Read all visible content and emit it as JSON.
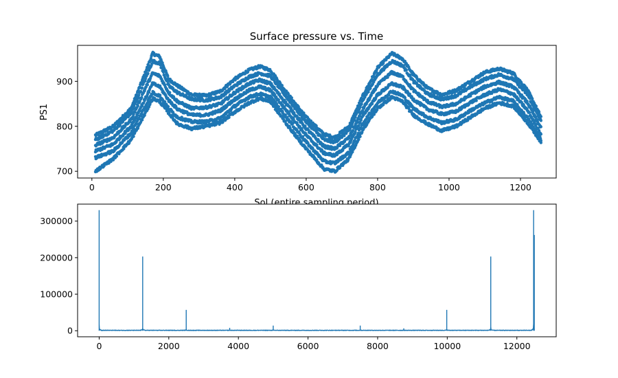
{
  "chart_data": [
    {
      "type": "scatter",
      "title": "Surface pressure vs. Time",
      "xlabel": "Sol (entire sampling period)",
      "ylabel": "PS1",
      "xlim": [
        -40,
        1300
      ],
      "ylim": [
        685,
        980
      ],
      "xticks": [
        0,
        200,
        400,
        600,
        800,
        1000,
        1200
      ],
      "yticks": [
        700,
        800,
        900
      ],
      "color": "#1f77b4",
      "marker_size": 2.2,
      "x_range": [
        10,
        1258
      ],
      "series": [
        {
          "offset": 0,
          "values": [
            [
              10,
              780
            ],
            [
              60,
              800
            ],
            [
              110,
              840
            ],
            [
              150,
              920
            ],
            [
              170,
              962
            ],
            [
              190,
              955
            ],
            [
              215,
              905
            ],
            [
              240,
              890
            ],
            [
              280,
              870
            ],
            [
              320,
              868
            ],
            [
              360,
              878
            ],
            [
              400,
              905
            ],
            [
              440,
              925
            ],
            [
              470,
              933
            ],
            [
              500,
              925
            ],
            [
              550,
              870
            ],
            [
              600,
              820
            ],
            [
              650,
              782
            ],
            [
              680,
              775
            ],
            [
              720,
              800
            ],
            [
              760,
              870
            ],
            [
              800,
              930
            ],
            [
              840,
              962
            ],
            [
              870,
              950
            ],
            [
              900,
              915
            ],
            [
              940,
              885
            ],
            [
              980,
              870
            ],
            [
              1020,
              880
            ],
            [
              1060,
              900
            ],
            [
              1100,
              920
            ],
            [
              1140,
              928
            ],
            [
              1180,
              918
            ],
            [
              1220,
              880
            ],
            [
              1258,
              820
            ]
          ]
        },
        {
          "offset": -12,
          "values": [
            [
              10,
              770
            ],
            [
              60,
              790
            ],
            [
              110,
              830
            ],
            [
              150,
              905
            ],
            [
              170,
              945
            ],
            [
              190,
              940
            ],
            [
              215,
              890
            ],
            [
              240,
              875
            ],
            [
              280,
              860
            ],
            [
              320,
              858
            ],
            [
              360,
              865
            ],
            [
              400,
              890
            ],
            [
              440,
              910
            ],
            [
              470,
              918
            ],
            [
              500,
              912
            ],
            [
              550,
              860
            ],
            [
              600,
              810
            ],
            [
              650,
              770
            ],
            [
              680,
              765
            ],
            [
              720,
              790
            ],
            [
              760,
              860
            ],
            [
              800,
              915
            ],
            [
              840,
              945
            ],
            [
              870,
              935
            ],
            [
              900,
              900
            ],
            [
              940,
              872
            ],
            [
              980,
              860
            ],
            [
              1020,
              868
            ],
            [
              1060,
              888
            ],
            [
              1100,
              905
            ],
            [
              1140,
              915
            ],
            [
              1180,
              905
            ],
            [
              1220,
              870
            ],
            [
              1258,
              810
            ]
          ]
        },
        {
          "offset": -28,
          "values": [
            [
              10,
              758
            ],
            [
              60,
              775
            ],
            [
              110,
              815
            ],
            [
              150,
              885
            ],
            [
              170,
              918
            ],
            [
              190,
              912
            ],
            [
              215,
              875
            ],
            [
              240,
              855
            ],
            [
              280,
              840
            ],
            [
              320,
              842
            ],
            [
              360,
              850
            ],
            [
              400,
              875
            ],
            [
              440,
              895
            ],
            [
              470,
              903
            ],
            [
              500,
              895
            ],
            [
              550,
              845
            ],
            [
              600,
              795
            ],
            [
              650,
              755
            ],
            [
              680,
              750
            ],
            [
              720,
              775
            ],
            [
              760,
              840
            ],
            [
              800,
              892
            ],
            [
              840,
              920
            ],
            [
              870,
              910
            ],
            [
              900,
              880
            ],
            [
              940,
              855
            ],
            [
              980,
              843
            ],
            [
              1020,
              850
            ],
            [
              1060,
              870
            ],
            [
              1100,
              888
            ],
            [
              1140,
              898
            ],
            [
              1180,
              888
            ],
            [
              1220,
              852
            ],
            [
              1258,
              795
            ]
          ]
        },
        {
          "offset": -45,
          "values": [
            [
              10,
              745
            ],
            [
              60,
              760
            ],
            [
              110,
              800
            ],
            [
              150,
              862
            ],
            [
              170,
              895
            ],
            [
              190,
              888
            ],
            [
              215,
              858
            ],
            [
              240,
              838
            ],
            [
              280,
              825
            ],
            [
              320,
              825
            ],
            [
              360,
              835
            ],
            [
              400,
              860
            ],
            [
              440,
              880
            ],
            [
              470,
              888
            ],
            [
              500,
              880
            ],
            [
              550,
              830
            ],
            [
              600,
              780
            ],
            [
              650,
              740
            ],
            [
              680,
              735
            ],
            [
              720,
              760
            ],
            [
              760,
              825
            ],
            [
              800,
              870
            ],
            [
              840,
              895
            ],
            [
              870,
              887
            ],
            [
              900,
              860
            ],
            [
              940,
              838
            ],
            [
              980,
              827
            ],
            [
              1020,
              833
            ],
            [
              1060,
              853
            ],
            [
              1100,
              870
            ],
            [
              1140,
              882
            ],
            [
              1180,
              872
            ],
            [
              1220,
              835
            ],
            [
              1258,
              782
            ]
          ]
        },
        {
          "offset": -62,
          "values": [
            [
              10,
              730
            ],
            [
              60,
              745
            ],
            [
              110,
              785
            ],
            [
              150,
              845
            ],
            [
              170,
              875
            ],
            [
              190,
              868
            ],
            [
              215,
              840
            ],
            [
              240,
              820
            ],
            [
              280,
              810
            ],
            [
              320,
              810
            ],
            [
              360,
              818
            ],
            [
              400,
              845
            ],
            [
              440,
              865
            ],
            [
              470,
              872
            ],
            [
              500,
              865
            ],
            [
              550,
              815
            ],
            [
              600,
              765
            ],
            [
              650,
              722
            ],
            [
              680,
              718
            ],
            [
              720,
              742
            ],
            [
              760,
              808
            ],
            [
              800,
              852
            ],
            [
              840,
              878
            ],
            [
              870,
              868
            ],
            [
              900,
              840
            ],
            [
              940,
              820
            ],
            [
              980,
              808
            ],
            [
              1020,
              815
            ],
            [
              1060,
              835
            ],
            [
              1100,
              852
            ],
            [
              1140,
              865
            ],
            [
              1180,
              856
            ],
            [
              1220,
              818
            ],
            [
              1258,
              770
            ]
          ]
        },
        {
          "offset": -80,
          "values": [
            [
              10,
              700
            ],
            [
              60,
              728
            ],
            [
              110,
              770
            ],
            [
              150,
              830
            ],
            [
              170,
              862
            ],
            [
              190,
              855
            ],
            [
              215,
              830
            ],
            [
              240,
              805
            ],
            [
              280,
              795
            ],
            [
              320,
              800
            ],
            [
              360,
              808
            ],
            [
              400,
              832
            ],
            [
              440,
              852
            ],
            [
              470,
              862
            ],
            [
              500,
              855
            ],
            [
              550,
              800
            ],
            [
              600,
              750
            ],
            [
              650,
              705
            ],
            [
              680,
              700
            ],
            [
              720,
              728
            ],
            [
              760,
              795
            ],
            [
              800,
              840
            ],
            [
              840,
              865
            ],
            [
              870,
              855
            ],
            [
              900,
              825
            ],
            [
              940,
              805
            ],
            [
              980,
              790
            ],
            [
              1020,
              800
            ],
            [
              1060,
              820
            ],
            [
              1100,
              840
            ],
            [
              1140,
              852
            ],
            [
              1180,
              845
            ],
            [
              1220,
              808
            ],
            [
              1258,
              765
            ]
          ]
        }
      ]
    },
    {
      "type": "line",
      "title": "",
      "xlabel": "",
      "ylabel": "",
      "xlim": [
        -620,
        13130
      ],
      "ylim": [
        -16500,
        346500
      ],
      "xticks": [
        0,
        2000,
        4000,
        6000,
        8000,
        10000,
        12000
      ],
      "yticks": [
        0,
        100000,
        200000,
        300000
      ],
      "color": "#1f77b4",
      "n_points": 12500,
      "baseline": 1500,
      "peaks": [
        {
          "x": 0,
          "y": 330000
        },
        {
          "x": 1250,
          "y": 203000
        },
        {
          "x": 2500,
          "y": 57000
        },
        {
          "x": 3750,
          "y": 8000
        },
        {
          "x": 5000,
          "y": 14000
        },
        {
          "x": 6250,
          "y": 2500
        },
        {
          "x": 7500,
          "y": 14000
        },
        {
          "x": 8750,
          "y": 6500
        },
        {
          "x": 9985,
          "y": 57000
        },
        {
          "x": 11250,
          "y": 203000
        },
        {
          "x": 12480,
          "y": 330000
        },
        {
          "x": 12500,
          "y": 262000
        }
      ]
    }
  ]
}
